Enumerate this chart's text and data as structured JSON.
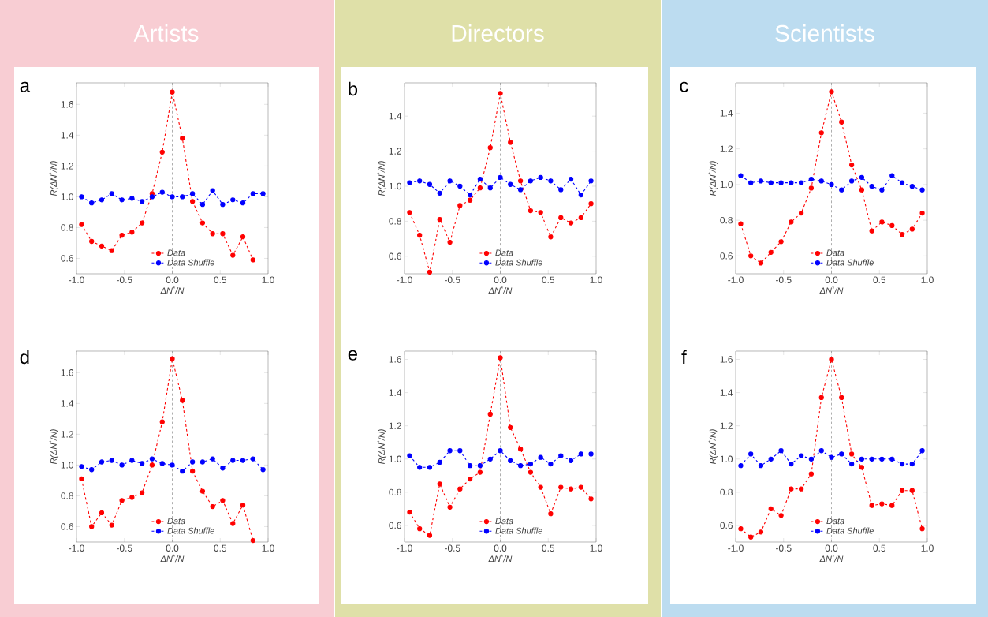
{
  "chart_data": [
    {
      "type": "line",
      "title": "a",
      "annotations": [
        "Artists"
      ],
      "xlabel": "ΔN$^{*}$/N",
      "ylabel": "R(ΔN$^{*}$/N)",
      "x": [
        -0.947,
        -0.842,
        -0.737,
        -0.632,
        -0.526,
        -0.421,
        -0.316,
        -0.211,
        -0.105,
        0,
        0.105,
        0.211,
        0.316,
        0.421,
        0.526,
        0.632,
        0.737,
        0.842,
        0.947
      ],
      "series": [
        {
          "name": "Data",
          "color": "#ff0000",
          "values": [
            0.82,
            0.71,
            0.68,
            0.65,
            0.75,
            0.77,
            0.83,
            1.02,
            1.29,
            1.68,
            1.38,
            0.97,
            0.83,
            0.76,
            0.76,
            0.62,
            0.74,
            0.59,
            null
          ]
        },
        {
          "name": "Data Shuffle",
          "color": "#0000ff",
          "values": [
            1.0,
            0.96,
            0.98,
            1.02,
            0.98,
            0.99,
            0.97,
            1.0,
            1.03,
            1.0,
            1.0,
            1.02,
            0.95,
            1.04,
            0.95,
            0.98,
            0.96,
            1.02,
            1.02
          ]
        }
      ],
      "xlim": [
        -1,
        1
      ],
      "ylim": [
        0.5,
        1.74
      ],
      "xticks": [
        {
          "value": -1,
          "label": "-1.0"
        },
        {
          "value": -0.5,
          "label": "-0.5"
        },
        {
          "value": 0,
          "label": "0.0"
        },
        {
          "value": 0.5,
          "label": "0.5"
        },
        {
          "value": 1,
          "label": "1.0"
        }
      ],
      "yticks": [
        {
          "value": 0.6,
          "label": "0.6"
        },
        {
          "value": 0.8,
          "label": "0.8"
        },
        {
          "value": 1,
          "label": "1.0"
        },
        {
          "value": 1.2,
          "label": "1.2"
        },
        {
          "value": 1.4,
          "label": "1.4"
        },
        {
          "value": 1.6,
          "label": "1.6"
        }
      ],
      "ref_lines": [
        {
          "axis": "x",
          "value": 0,
          "color": "#999999",
          "line_style": "dashed"
        }
      ],
      "legend": "bottom",
      "marker": "circle",
      "line_style": "dashed",
      "grid": false
    },
    {
      "type": "line",
      "title": "b",
      "annotations": [
        "Directors"
      ],
      "xlabel": "ΔN$^{*}$/N",
      "ylabel": "R(ΔN$^{*}$/N)",
      "x": [
        -0.947,
        -0.842,
        -0.737,
        -0.632,
        -0.526,
        -0.421,
        -0.316,
        -0.211,
        -0.105,
        0,
        0.105,
        0.211,
        0.316,
        0.421,
        0.526,
        0.632,
        0.737,
        0.842,
        0.947
      ],
      "series": [
        {
          "name": "Data",
          "color": "#ff0000",
          "values": [
            0.85,
            0.72,
            0.51,
            0.81,
            0.68,
            0.89,
            0.92,
            0.99,
            1.22,
            1.53,
            1.25,
            1.03,
            0.86,
            0.85,
            0.71,
            0.82,
            0.79,
            0.82,
            0.9
          ]
        },
        {
          "name": "Data Shuffle",
          "color": "#0000ff",
          "values": [
            1.02,
            1.03,
            1.01,
            0.96,
            1.03,
            1.0,
            0.95,
            1.04,
            0.99,
            1.05,
            1.01,
            0.98,
            1.03,
            1.05,
            1.03,
            0.98,
            1.04,
            0.95,
            1.03
          ]
        }
      ],
      "xlim": [
        -1,
        1
      ],
      "ylim": [
        0.5,
        1.59
      ],
      "xticks": [
        {
          "value": -1,
          "label": "-1.0"
        },
        {
          "value": -0.5,
          "label": "-0.5"
        },
        {
          "value": 0,
          "label": "0.0"
        },
        {
          "value": 0.5,
          "label": "0.5"
        },
        {
          "value": 1,
          "label": "1.0"
        }
      ],
      "yticks": [
        {
          "value": 0.6,
          "label": "0.6"
        },
        {
          "value": 0.8,
          "label": "0.8"
        },
        {
          "value": 1,
          "label": "1.0"
        },
        {
          "value": 1.2,
          "label": "1.2"
        },
        {
          "value": 1.4,
          "label": "1.4"
        }
      ],
      "ref_lines": [
        {
          "axis": "x",
          "value": 0,
          "color": "#999999",
          "line_style": "dashed"
        }
      ],
      "legend": "bottom",
      "marker": "circle",
      "line_style": "dashed",
      "grid": false
    },
    {
      "type": "line",
      "title": "c",
      "annotations": [
        "Scientists"
      ],
      "xlabel": "ΔN$^{*}$/N",
      "ylabel": "R(ΔN$^{*}$/N)",
      "x": [
        -0.947,
        -0.842,
        -0.737,
        -0.632,
        -0.526,
        -0.421,
        -0.316,
        -0.211,
        -0.105,
        0,
        0.105,
        0.211,
        0.316,
        0.421,
        0.526,
        0.632,
        0.737,
        0.842,
        0.947
      ],
      "series": [
        {
          "name": "Data",
          "color": "#ff0000",
          "values": [
            0.78,
            0.6,
            0.56,
            0.62,
            0.68,
            0.79,
            0.84,
            0.98,
            1.29,
            1.52,
            1.35,
            1.11,
            0.97,
            0.74,
            0.79,
            0.77,
            0.72,
            0.75,
            0.84
          ]
        },
        {
          "name": "Data Shuffle",
          "color": "#0000ff",
          "values": [
            1.05,
            1.01,
            1.02,
            1.01,
            1.01,
            1.01,
            1.01,
            1.03,
            1.02,
            1.0,
            0.97,
            1.02,
            1.04,
            0.99,
            0.97,
            1.05,
            1.01,
            0.99,
            0.97
          ]
        }
      ],
      "xlim": [
        -1,
        1
      ],
      "ylim": [
        0.5,
        1.57
      ],
      "xticks": [
        {
          "value": -1,
          "label": "-1.0"
        },
        {
          "value": -0.5,
          "label": "-0.5"
        },
        {
          "value": 0,
          "label": "0.0"
        },
        {
          "value": 0.5,
          "label": "0.5"
        },
        {
          "value": 1,
          "label": "1.0"
        }
      ],
      "yticks": [
        {
          "value": 0.6,
          "label": "0.6"
        },
        {
          "value": 0.8,
          "label": "0.8"
        },
        {
          "value": 1,
          "label": "1.0"
        },
        {
          "value": 1.2,
          "label": "1.2"
        },
        {
          "value": 1.4,
          "label": "1.4"
        }
      ],
      "ref_lines": [
        {
          "axis": "x",
          "value": 0,
          "color": "#999999",
          "line_style": "dashed"
        }
      ],
      "legend": "bottom",
      "marker": "circle",
      "line_style": "dashed",
      "grid": false
    },
    {
      "type": "line",
      "title": "d",
      "xlabel": "ΔN$^{*}$/N",
      "ylabel": "R(ΔN$^{*}$/N)",
      "x": [
        -0.947,
        -0.842,
        -0.737,
        -0.632,
        -0.526,
        -0.421,
        -0.316,
        -0.211,
        -0.105,
        0,
        0.105,
        0.211,
        0.316,
        0.421,
        0.526,
        0.632,
        0.737,
        0.842,
        0.947
      ],
      "series": [
        {
          "name": "Data",
          "color": "#ff0000",
          "values": [
            0.91,
            0.6,
            0.69,
            0.61,
            0.77,
            0.79,
            0.82,
            1.0,
            1.28,
            1.69,
            1.42,
            0.96,
            0.83,
            0.73,
            0.77,
            0.62,
            0.74,
            0.51,
            null
          ]
        },
        {
          "name": "Data Shuffle",
          "color": "#0000ff",
          "values": [
            0.99,
            0.97,
            1.02,
            1.03,
            1.0,
            1.03,
            1.01,
            1.04,
            1.01,
            1.0,
            0.96,
            1.02,
            1.02,
            1.04,
            0.98,
            1.03,
            1.03,
            1.04,
            0.97
          ]
        }
      ],
      "xlim": [
        -1,
        1
      ],
      "ylim": [
        0.5,
        1.74
      ],
      "xticks": [
        {
          "value": -1,
          "label": "-1.0"
        },
        {
          "value": -0.5,
          "label": "-0.5"
        },
        {
          "value": 0,
          "label": "0.0"
        },
        {
          "value": 0.5,
          "label": "0.5"
        },
        {
          "value": 1,
          "label": "1.0"
        }
      ],
      "yticks": [
        {
          "value": 0.6,
          "label": "0.6"
        },
        {
          "value": 0.8,
          "label": "0.8"
        },
        {
          "value": 1,
          "label": "1.0"
        },
        {
          "value": 1.2,
          "label": "1.2"
        },
        {
          "value": 1.4,
          "label": "1.4"
        },
        {
          "value": 1.6,
          "label": "1.6"
        }
      ],
      "ref_lines": [
        {
          "axis": "x",
          "value": 0,
          "color": "#999999",
          "line_style": "dashed"
        }
      ],
      "legend": "bottom",
      "marker": "circle",
      "line_style": "dashed",
      "grid": false
    },
    {
      "type": "line",
      "title": "e",
      "xlabel": "ΔN$^{*}$/N",
      "ylabel": "R(ΔN$^{*}$/N)",
      "x": [
        -0.947,
        -0.842,
        -0.737,
        -0.632,
        -0.526,
        -0.421,
        -0.316,
        -0.211,
        -0.105,
        0,
        0.105,
        0.211,
        0.316,
        0.421,
        0.526,
        0.632,
        0.737,
        0.842,
        0.947
      ],
      "series": [
        {
          "name": "Data",
          "color": "#ff0000",
          "values": [
            0.68,
            0.58,
            0.54,
            0.85,
            0.71,
            0.82,
            0.88,
            0.92,
            1.27,
            1.61,
            1.19,
            1.06,
            0.92,
            0.83,
            0.67,
            0.83,
            0.82,
            0.83,
            0.76
          ]
        },
        {
          "name": "Data Shuffle",
          "color": "#0000ff",
          "values": [
            1.02,
            0.95,
            0.95,
            0.98,
            1.05,
            1.05,
            0.96,
            0.96,
            1.0,
            1.05,
            0.99,
            0.96,
            0.97,
            1.01,
            0.97,
            1.02,
            0.99,
            1.03,
            1.03
          ]
        }
      ],
      "xlim": [
        -1,
        1
      ],
      "ylim": [
        0.5,
        1.65
      ],
      "xticks": [
        {
          "value": -1,
          "label": "-1.0"
        },
        {
          "value": -0.5,
          "label": "-0.5"
        },
        {
          "value": 0,
          "label": "0.0"
        },
        {
          "value": 0.5,
          "label": "0.5"
        },
        {
          "value": 1,
          "label": "1.0"
        }
      ],
      "yticks": [
        {
          "value": 0.6,
          "label": "0.6"
        },
        {
          "value": 0.8,
          "label": "0.8"
        },
        {
          "value": 1,
          "label": "1.0"
        },
        {
          "value": 1.2,
          "label": "1.2"
        },
        {
          "value": 1.4,
          "label": "1.4"
        },
        {
          "value": 1.6,
          "label": "1.6"
        }
      ],
      "ref_lines": [
        {
          "axis": "x",
          "value": 0,
          "color": "#999999",
          "line_style": "dashed"
        }
      ],
      "legend": "bottom",
      "marker": "circle",
      "line_style": "dashed",
      "grid": false
    },
    {
      "type": "line",
      "title": "f",
      "xlabel": "ΔN$^{*}$/N",
      "ylabel": "R(ΔN$^{*}$/N)",
      "x": [
        -0.947,
        -0.842,
        -0.737,
        -0.632,
        -0.526,
        -0.421,
        -0.316,
        -0.211,
        -0.105,
        0,
        0.105,
        0.211,
        0.316,
        0.421,
        0.526,
        0.632,
        0.737,
        0.842,
        0.947
      ],
      "series": [
        {
          "name": "Data",
          "color": "#ff0000",
          "values": [
            0.58,
            0.53,
            0.56,
            0.7,
            0.66,
            0.82,
            0.82,
            0.91,
            1.37,
            1.6,
            1.37,
            1.03,
            0.95,
            0.72,
            0.73,
            0.72,
            0.81,
            0.81,
            0.58
          ]
        },
        {
          "name": "Data Shuffle",
          "color": "#0000ff",
          "values": [
            0.96,
            1.03,
            0.96,
            1.0,
            1.05,
            0.97,
            1.02,
            1.0,
            1.05,
            1.01,
            1.03,
            0.97,
            1.0,
            1.0,
            1.0,
            1.0,
            0.97,
            0.97,
            1.05
          ]
        }
      ],
      "xlim": [
        -1,
        1
      ],
      "ylim": [
        0.5,
        1.65
      ],
      "xticks": [
        {
          "value": -1,
          "label": "-1.0"
        },
        {
          "value": -0.5,
          "label": "-0.5"
        },
        {
          "value": 0,
          "label": "0.0"
        },
        {
          "value": 0.5,
          "label": "0.5"
        },
        {
          "value": 1,
          "label": "1.0"
        }
      ],
      "yticks": [
        {
          "value": 0.6,
          "label": "0.6"
        },
        {
          "value": 0.8,
          "label": "0.8"
        },
        {
          "value": 1,
          "label": "1.0"
        },
        {
          "value": 1.2,
          "label": "1.2"
        },
        {
          "value": 1.4,
          "label": "1.4"
        },
        {
          "value": 1.6,
          "label": "1.6"
        }
      ],
      "ref_lines": [
        {
          "axis": "x",
          "value": 0,
          "color": "#999999",
          "line_style": "dashed"
        }
      ],
      "legend": "bottom",
      "marker": "circle",
      "line_style": "dashed",
      "grid": false
    }
  ]
}
